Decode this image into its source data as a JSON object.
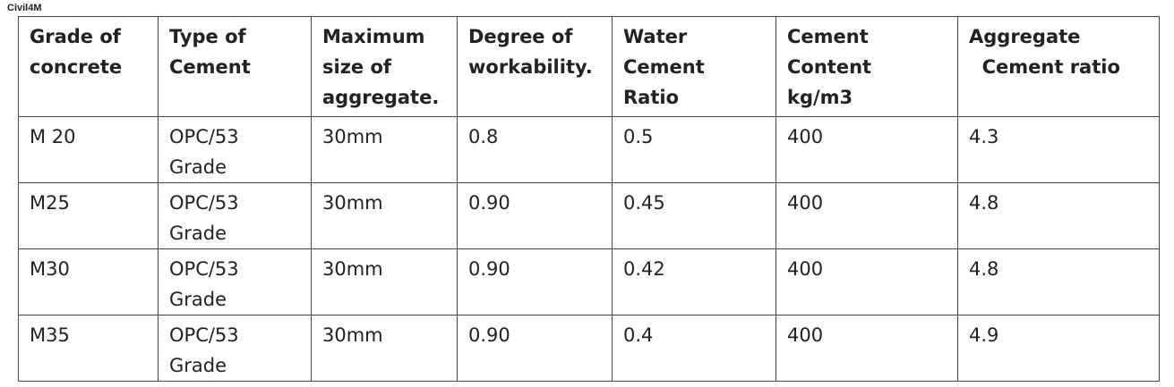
{
  "watermark": "Civil4M",
  "table": {
    "header": [
      "Grade of\nconcrete",
      "Type of\nCement",
      "Maximum\nsize of\naggregate.",
      "Degree of\nworkability.",
      "Water\nCement\nRatio",
      "Cement\nContent\nkg/m3",
      "Aggregate\n  Cement ratio"
    ],
    "rows": [
      [
        "M 20",
        "OPC/53\nGrade",
        "30mm",
        "0.8",
        "0.5",
        "400",
        "4.3"
      ],
      [
        "M25",
        "OPC/53\nGrade",
        "30mm",
        "0.90",
        "0.45",
        "400",
        "4.8"
      ],
      [
        "M30",
        "OPC/53\nGrade",
        "30mm",
        "0.90",
        "0.42",
        "400",
        "4.8"
      ],
      [
        "M35",
        "OPC/53\nGrade",
        "30mm",
        "0.90",
        "0.4",
        "400",
        "4.9"
      ]
    ]
  }
}
